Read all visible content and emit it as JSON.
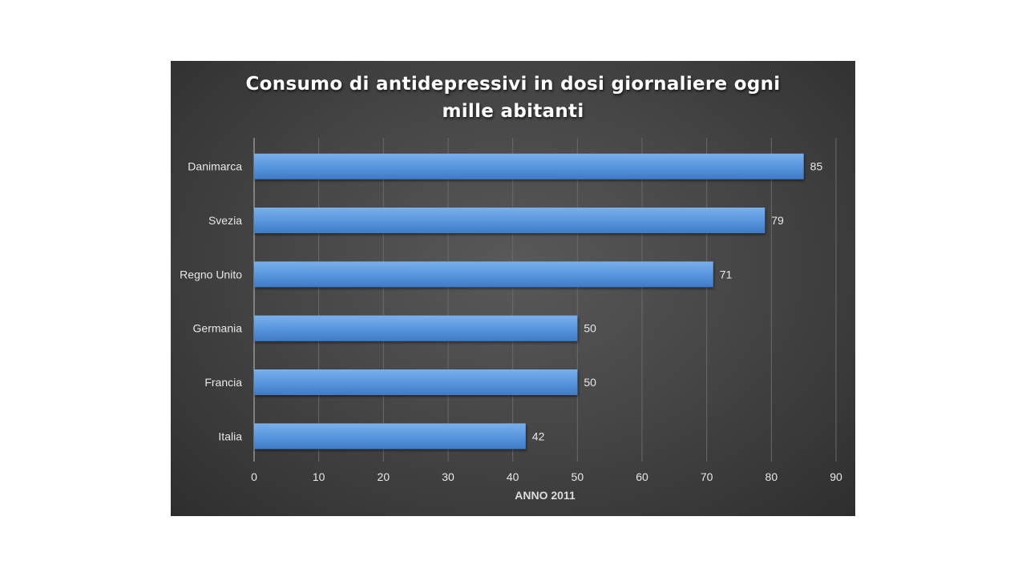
{
  "chart_data": {
    "type": "bar",
    "orientation": "horizontal",
    "title_lines": [
      "Consumo di antidepressivi in dosi giornaliere ogni",
      "mille abitanti"
    ],
    "categories": [
      "Danimarca",
      "Svezia",
      "Regno Unito",
      "Germania",
      "Francia",
      "Italia"
    ],
    "values": [
      85,
      79,
      71,
      50,
      50,
      42
    ],
    "xlabel": "ANNO 2011",
    "ylabel": "",
    "xlim": [
      0,
      90
    ],
    "xticks": [
      0,
      10,
      20,
      30,
      40,
      50,
      60,
      70,
      80,
      90
    ],
    "grid": true,
    "legend": "none",
    "colors": {
      "bar_light": "#6fa8e6",
      "bar_dark": "#3f7fcc",
      "text": "#e8e8e8",
      "grid": "#6a6a6a"
    }
  }
}
